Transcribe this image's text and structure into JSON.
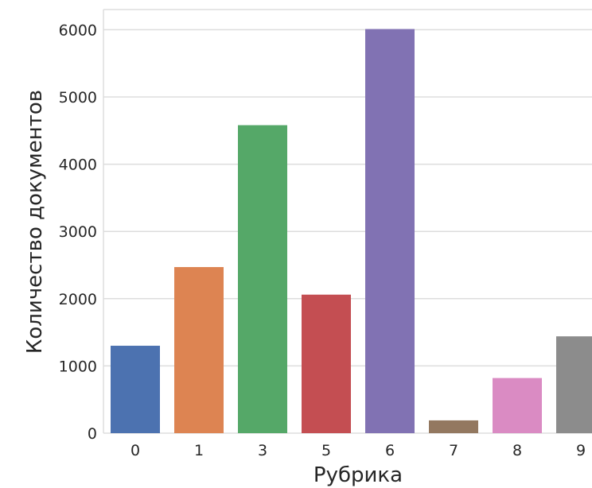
{
  "chart_data": {
    "type": "bar",
    "categories": [
      "0",
      "1",
      "3",
      "5",
      "6",
      "7",
      "8",
      "9"
    ],
    "values": [
      1300,
      2470,
      4580,
      2060,
      6010,
      190,
      820,
      1440
    ],
    "colors": [
      "#4C72B0",
      "#DD8452",
      "#55A868",
      "#C44E52",
      "#8172B3",
      "#937860",
      "#DA8BC3",
      "#8C8C8C"
    ],
    "xlabel": "Рубрика",
    "ylabel": "Количество документов",
    "yticks": [
      "0",
      "1000",
      "2000",
      "3000",
      "4000",
      "5000",
      "6000"
    ],
    "ylim": [
      0,
      6300
    ],
    "grid": true,
    "background": "#ffffff",
    "gridColor": "#dddddd"
  }
}
